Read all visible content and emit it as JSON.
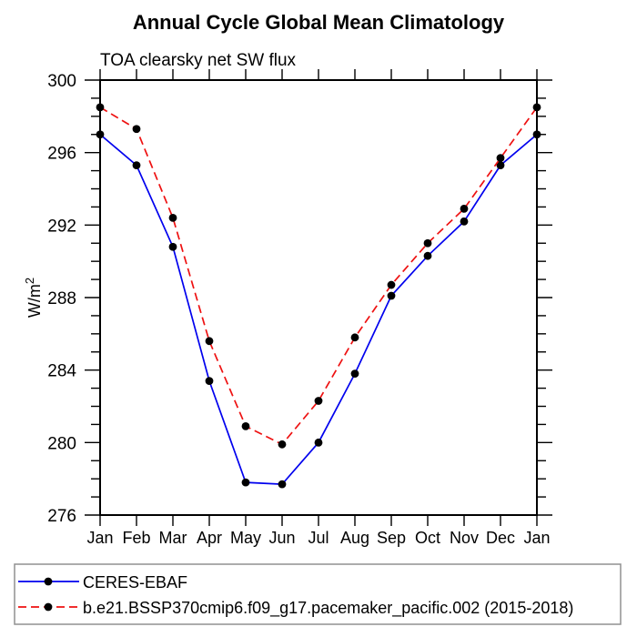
{
  "colors": {
    "ceres_line": "#0000ee",
    "model_line": "#ee1111",
    "marker": "#000000",
    "axis": "#000000",
    "legend_border": "#909090",
    "background": "#ffffff"
  },
  "chart_data": {
    "type": "line",
    "title": "Annual Cycle Global Mean Climatology",
    "subtitle": "TOA clearsky net SW flux",
    "ylabel": "W/m²",
    "ylabel_base": "W/m",
    "ylabel_sup": "2",
    "xlabel": "",
    "ylim": [
      276,
      300
    ],
    "ytick_major": [
      276,
      280,
      284,
      288,
      292,
      296,
      300
    ],
    "ytick_minor_step": 1,
    "grid": false,
    "frame": "box",
    "tick_direction": "out",
    "legend_position": "bottom-left-box",
    "categories": [
      "Jan",
      "Feb",
      "Mar",
      "Apr",
      "May",
      "Jun",
      "Jul",
      "Aug",
      "Sep",
      "Oct",
      "Nov",
      "Dec",
      "Jan"
    ],
    "series": [
      {
        "name": "CERES-EBAF",
        "color": "#0000ee",
        "style": "solid",
        "marker": "filled-circle",
        "values": [
          297.0,
          295.3,
          290.8,
          283.4,
          277.8,
          277.7,
          280.0,
          283.8,
          288.1,
          290.3,
          292.2,
          295.3,
          297.0
        ]
      },
      {
        "name": "b.e21.BSSP370cmip6.f09_g17.pacemaker_pacific.002 (2015-2018)",
        "color": "#ee1111",
        "style": "dashed",
        "marker": "filled-circle",
        "values": [
          298.5,
          297.3,
          292.4,
          285.6,
          280.9,
          279.9,
          282.3,
          285.8,
          288.7,
          291.0,
          292.9,
          295.7,
          298.5
        ]
      }
    ]
  }
}
